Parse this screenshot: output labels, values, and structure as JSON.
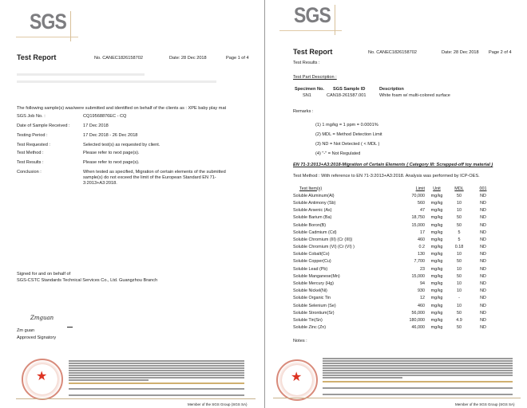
{
  "logo_text": "SGS",
  "page1": {
    "title": "Test Report",
    "report_no": "No. CANEC1826158702",
    "date": "Date: 28 Dec 2018",
    "page": "Page 1 of 4",
    "intro": "The following sample(s) was/were submitted and identified on behalf of the clients as : XPE baby play mat",
    "fields": [
      {
        "label": "SGS Job No. :",
        "value": "CQ19568876EC - CQ"
      },
      {
        "label": "Date of Sample Received :",
        "value": "17 Dec 2018"
      },
      {
        "label": "Testing Period :",
        "value": "17 Dec 2018 - 26 Dec 2018"
      },
      {
        "label": "Test Requested :",
        "value": "Selected test(s) as requested by client."
      },
      {
        "label": "Test Method :",
        "value": "Please refer to next page(s)."
      },
      {
        "label": "Test Results :",
        "value": "Please refer to next page(s)."
      },
      {
        "label": "Conclusion :",
        "value": "When tested as specified, Migration of certain elements of the submitted sample(s) do not exceed the limit of the European Standard EN 71-3:2013+A3:2018."
      }
    ],
    "signed_line1": "Signed for and on behalf of",
    "signed_line2": "SGS-CSTC Standards Technical Services Co., Ltd. Guangzhou Branch",
    "signature": "Zmguan",
    "signatory_name": "Zm guan",
    "signatory_title": "Approved Signatory",
    "member": "Member of the SGS Group (SGS SA)"
  },
  "page2": {
    "title": "Test Report",
    "report_no": "No. CANEC1826158702",
    "date": "Date: 28 Dec 2018",
    "page": "Page 2 of 4",
    "results_label": "Test Results :",
    "part_desc_label": "Test Part Description :",
    "specimen_headers": [
      "Specimen No.",
      "SGS Sample ID",
      "Description"
    ],
    "specimen_row": [
      "SN1",
      "CAN18-261587.001",
      "White foam w/ multi-colored surface"
    ],
    "remarks_label": "Remarks :",
    "remarks": [
      "(1) 1 mg/kg = 1 ppm = 0.0001%",
      "(2) MDL = Method Detection Limit",
      "(3) ND = Not Detected ( < MDL )",
      "(4) \"-\" = Not Regulated"
    ],
    "section_heading": "EN 71-3:2013+A3:2018-Migration of Certain Elements ( Category III: Scrapped-off toy material )",
    "test_method": "Test Method :   With reference to EN 71-3:2013+A3:2018. Analysis was performed by ICP-OES.",
    "table_headers": [
      "Test Item(s)",
      "Limit",
      "Unit",
      "MDL",
      "001"
    ],
    "rows": [
      [
        "Soluble Aluminum(Al)",
        "70,000",
        "mg/kg",
        "50",
        "ND"
      ],
      [
        "Soluble Antimony (Sb)",
        "560",
        "mg/kg",
        "10",
        "ND"
      ],
      [
        "Soluble Arsenic (As)",
        "47",
        "mg/kg",
        "10",
        "ND"
      ],
      [
        "Soluble Barium (Ba)",
        "18,750",
        "mg/kg",
        "50",
        "ND"
      ],
      [
        "Soluble Boron(B)",
        "15,000",
        "mg/kg",
        "50",
        "ND"
      ],
      [
        "Soluble Cadmium (Cd)",
        "17",
        "mg/kg",
        "5",
        "ND"
      ],
      [
        "Soluble Chromium (III) (Cr (III))",
        "460",
        "mg/kg",
        "5",
        "ND"
      ],
      [
        "Soluble Chromium (VI) (Cr (VI) )",
        "0.2",
        "mg/kg",
        "0.18",
        "ND"
      ],
      [
        "Soluble Cobalt(Co)",
        "130",
        "mg/kg",
        "10",
        "ND"
      ],
      [
        "Soluble Copper(Cu)",
        "7,700",
        "mg/kg",
        "50",
        "ND"
      ],
      [
        "Soluble Lead (Pb)",
        "23",
        "mg/kg",
        "10",
        "ND"
      ],
      [
        "Soluble Manganese(Mn)",
        "15,000",
        "mg/kg",
        "50",
        "ND"
      ],
      [
        "Soluble Mercury (Hg)",
        "94",
        "mg/kg",
        "10",
        "ND"
      ],
      [
        "Soluble Nickel(Ni)",
        "930",
        "mg/kg",
        "10",
        "ND"
      ],
      [
        "Soluble Organic Tin",
        "12",
        "mg/kg",
        "-",
        "ND"
      ],
      [
        "Soluble Selenium (Se)",
        "460",
        "mg/kg",
        "10",
        "ND"
      ],
      [
        "Soluble Strontium(Sr)",
        "56,000",
        "mg/kg",
        "50",
        "ND"
      ],
      [
        "Soluble Tin(Sn)",
        "180,000",
        "mg/kg",
        "4.9",
        "ND"
      ],
      [
        "Soluble Zinc (Zn)",
        "46,000",
        "mg/kg",
        "50",
        "ND"
      ]
    ],
    "notes_label": "Notes :",
    "member": "Member of the SGS Group (SGS SA)"
  }
}
